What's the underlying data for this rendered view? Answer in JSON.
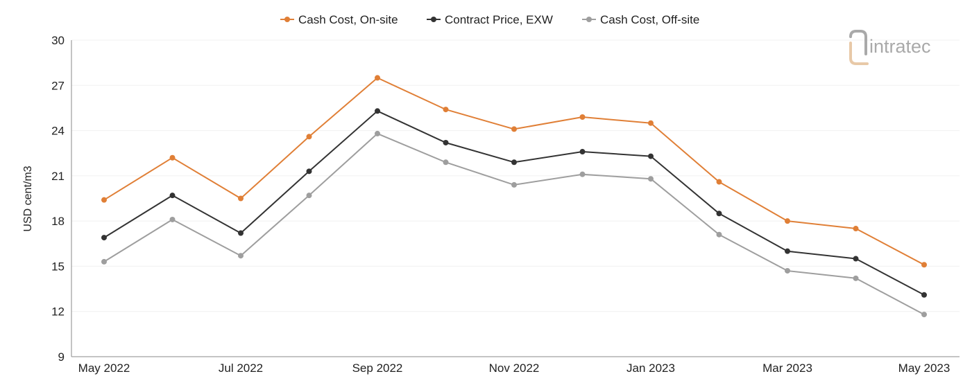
{
  "chart_data": {
    "type": "line",
    "title": "",
    "xlabel": "",
    "ylabel": "USD cent/m3",
    "ylim": [
      9,
      30
    ],
    "yticks": [
      9,
      12,
      15,
      18,
      21,
      24,
      27,
      30
    ],
    "grid": "horizontal",
    "legend_position": "top-center",
    "categories": [
      "May 2022",
      "Jun 2022",
      "Jul 2022",
      "Aug 2022",
      "Sep 2022",
      "Oct 2022",
      "Nov 2022",
      "Dec 2022",
      "Jan 2023",
      "Feb 2023",
      "Mar 2023",
      "Apr 2023",
      "May 2023"
    ],
    "xtick_labels": [
      "May 2022",
      "",
      "Jul 2022",
      "",
      "Sep 2022",
      "",
      "Nov 2022",
      "",
      "Jan 2023",
      "",
      "Mar 2023",
      "",
      "May 2023"
    ],
    "series": [
      {
        "name": "Cash Cost, On-site",
        "color": "#e07f36",
        "values": [
          19.4,
          22.2,
          19.5,
          23.6,
          27.5,
          25.4,
          24.1,
          24.9,
          24.5,
          20.6,
          18.0,
          17.5,
          15.1
        ]
      },
      {
        "name": "Contract Price, EXW",
        "color": "#333333",
        "values": [
          16.9,
          19.7,
          17.2,
          21.3,
          25.3,
          23.2,
          21.9,
          22.6,
          22.3,
          18.5,
          16.0,
          15.5,
          13.1
        ]
      },
      {
        "name": "Cash Cost, Off-site",
        "color": "#9e9e9e",
        "values": [
          15.3,
          18.1,
          15.7,
          19.7,
          23.8,
          21.9,
          20.4,
          21.1,
          20.8,
          17.1,
          14.7,
          14.2,
          11.8
        ]
      }
    ]
  },
  "logo": {
    "text": "intratec",
    "icon": "intratec-logo-icon",
    "color": "#a9a9a9",
    "accent": "#e8c9a8"
  }
}
